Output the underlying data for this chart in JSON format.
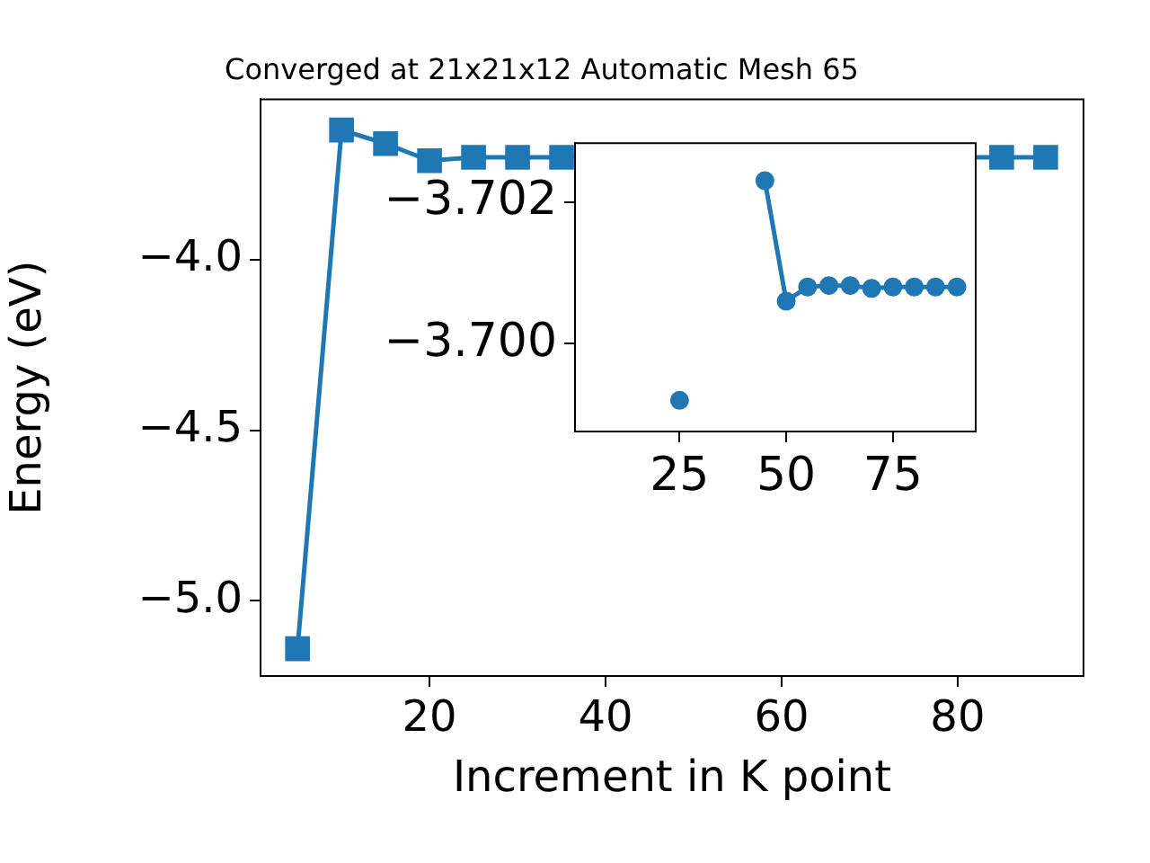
{
  "chart_data": [
    {
      "type": "line",
      "title": "Converged at 21x21x12 Automatic Mesh 65",
      "xlabel": "Increment in K point",
      "ylabel": "Energy (eV)",
      "x": [
        5,
        10,
        15,
        20,
        25,
        30,
        35,
        40,
        45,
        50,
        55,
        60,
        65,
        70,
        75,
        80,
        85,
        90
      ],
      "series": [
        {
          "color": "#1f77b4",
          "values": [
            -5.14,
            -3.62,
            -3.66,
            -3.71,
            -3.7,
            -3.7,
            -3.7,
            null,
            null,
            null,
            null,
            null,
            null,
            null,
            null,
            null,
            -3.7,
            -3.7
          ]
        }
      ],
      "xlim": [
        0.8,
        94.3
      ],
      "ylim": [
        -5.22,
        -3.53
      ],
      "xticks": [
        20,
        40,
        60,
        80
      ],
      "yticks": [
        {
          "value": -5,
          "label": "−5.0"
        },
        {
          "value": -4.5,
          "label": "−4.5"
        },
        {
          "value": -4,
          "label": "−4.0"
        }
      ],
      "marker": "square"
    },
    {
      "type": "line",
      "x": [
        25,
        30,
        35,
        40,
        45,
        50,
        55,
        60,
        65,
        70,
        75,
        80,
        85,
        90
      ],
      "series": [
        {
          "color": "#1f77b4",
          "values": [
            -3.6992,
            null,
            null,
            null,
            -3.7023,
            -3.7006,
            -3.7008,
            -3.70082,
            -3.70082,
            -3.70078,
            -3.7008,
            -3.7008,
            -3.7008,
            -3.7008
          ]
        }
      ],
      "xlim": [
        0.5,
        94.4
      ],
      "ylim": [
        -3.69876,
        -3.70283
      ],
      "xticks": [
        25,
        50,
        75
      ],
      "yticks": [
        {
          "value": -3.702,
          "label": "−3.702"
        },
        {
          "value": -3.7,
          "label": "−3.700"
        }
      ],
      "marker": "circle"
    }
  ]
}
